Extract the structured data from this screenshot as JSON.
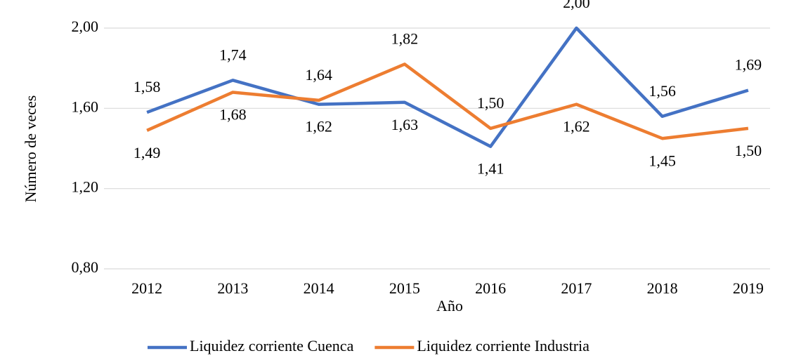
{
  "chart_data": {
    "type": "line",
    "x_label": "Año",
    "y_label": "Número de veces",
    "categories": [
      "2012",
      "2013",
      "2014",
      "2015",
      "2016",
      "2017",
      "2018",
      "2019"
    ],
    "series": [
      {
        "name": "Liquidez corriente Cuenca",
        "color": "#4472c4",
        "values": [
          1.58,
          1.74,
          1.62,
          1.63,
          1.41,
          2.0,
          1.56,
          1.69
        ],
        "value_labels": [
          "1,58",
          "1,74",
          "1,62",
          "1,63",
          "1,41",
          "2,00",
          "1,56",
          "1,69"
        ]
      },
      {
        "name": "Liquidez corriente Industria",
        "color": "#ed7d31",
        "values": [
          1.49,
          1.68,
          1.64,
          1.82,
          1.5,
          1.62,
          1.45,
          1.5
        ],
        "value_labels": [
          "1,49",
          "1,68",
          "1,64",
          "1,82",
          "1,50",
          "1,62",
          "1,45",
          "1,50"
        ]
      }
    ],
    "ylim": [
      0.8,
      2.0
    ],
    "yticks": [
      {
        "value": 0.8,
        "label": "0,80"
      },
      {
        "value": 1.2,
        "label": "1,20"
      },
      {
        "value": 1.6,
        "label": "1,60"
      },
      {
        "value": 2.0,
        "label": "2,00"
      }
    ],
    "grid": true,
    "legend": "bottom"
  }
}
